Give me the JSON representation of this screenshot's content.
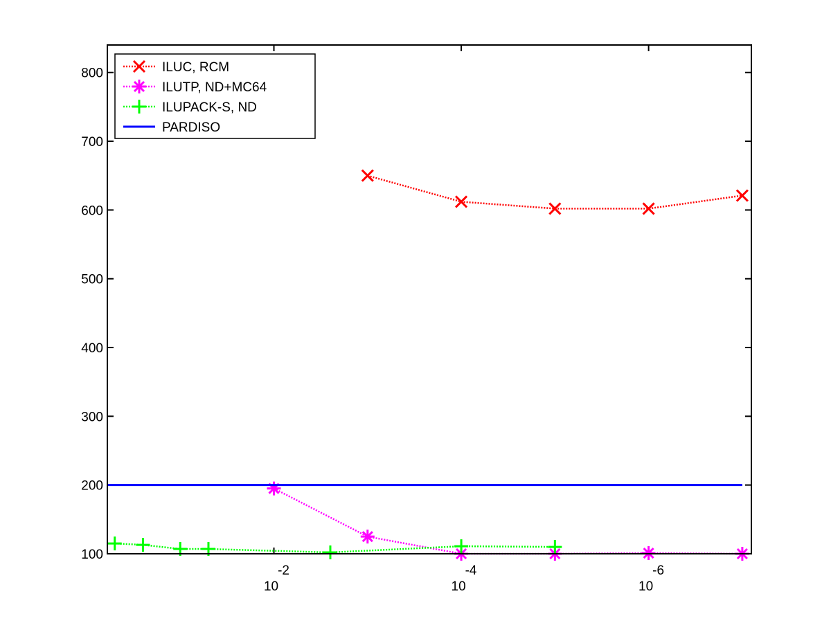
{
  "chart_data": {
    "type": "line",
    "xscale": "log",
    "xlim": [
      0.6,
      8e-08
    ],
    "ylim": [
      100,
      840
    ],
    "xticks": [
      {
        "value": 0.01,
        "label": "10",
        "exponent": "-2"
      },
      {
        "value": 0.0001,
        "label": "10",
        "exponent": "-4"
      },
      {
        "value": 1e-06,
        "label": "10",
        "exponent": "-6"
      }
    ],
    "yticks": [
      100,
      200,
      300,
      400,
      500,
      600,
      700,
      800
    ],
    "legend": "upper-left",
    "series": [
      {
        "name": "ILUC, RCM",
        "color": "#ff0000",
        "marker": "x",
        "dash": "dotted",
        "x": [
          0.001,
          0.0001,
          1e-05,
          1e-06,
          1e-07
        ],
        "values": [
          650,
          612,
          602,
          602,
          621
        ]
      },
      {
        "name": "ILUTP,  ND+MC64",
        "color": "#ff00ff",
        "marker": "asterisk",
        "dash": "dotted",
        "x": [
          0.01,
          0.001,
          0.0001,
          1e-05,
          1e-06,
          1e-07
        ],
        "values": [
          195,
          125,
          100,
          100,
          101,
          100
        ]
      },
      {
        "name": "ILUPACK-S, ND",
        "color": "#00ff00",
        "marker": "plus",
        "dash": "dotted",
        "x": [
          0.5,
          0.25,
          0.1,
          0.05,
          0.0025,
          0.0001,
          1e-05
        ],
        "values": [
          115,
          113,
          107,
          107,
          102,
          111,
          110
        ]
      },
      {
        "name": "PARDISO",
        "color": "#0000ff",
        "marker": "none",
        "dash": "solid",
        "x": [
          0.6,
          1e-07
        ],
        "values": [
          200,
          200
        ]
      }
    ]
  }
}
